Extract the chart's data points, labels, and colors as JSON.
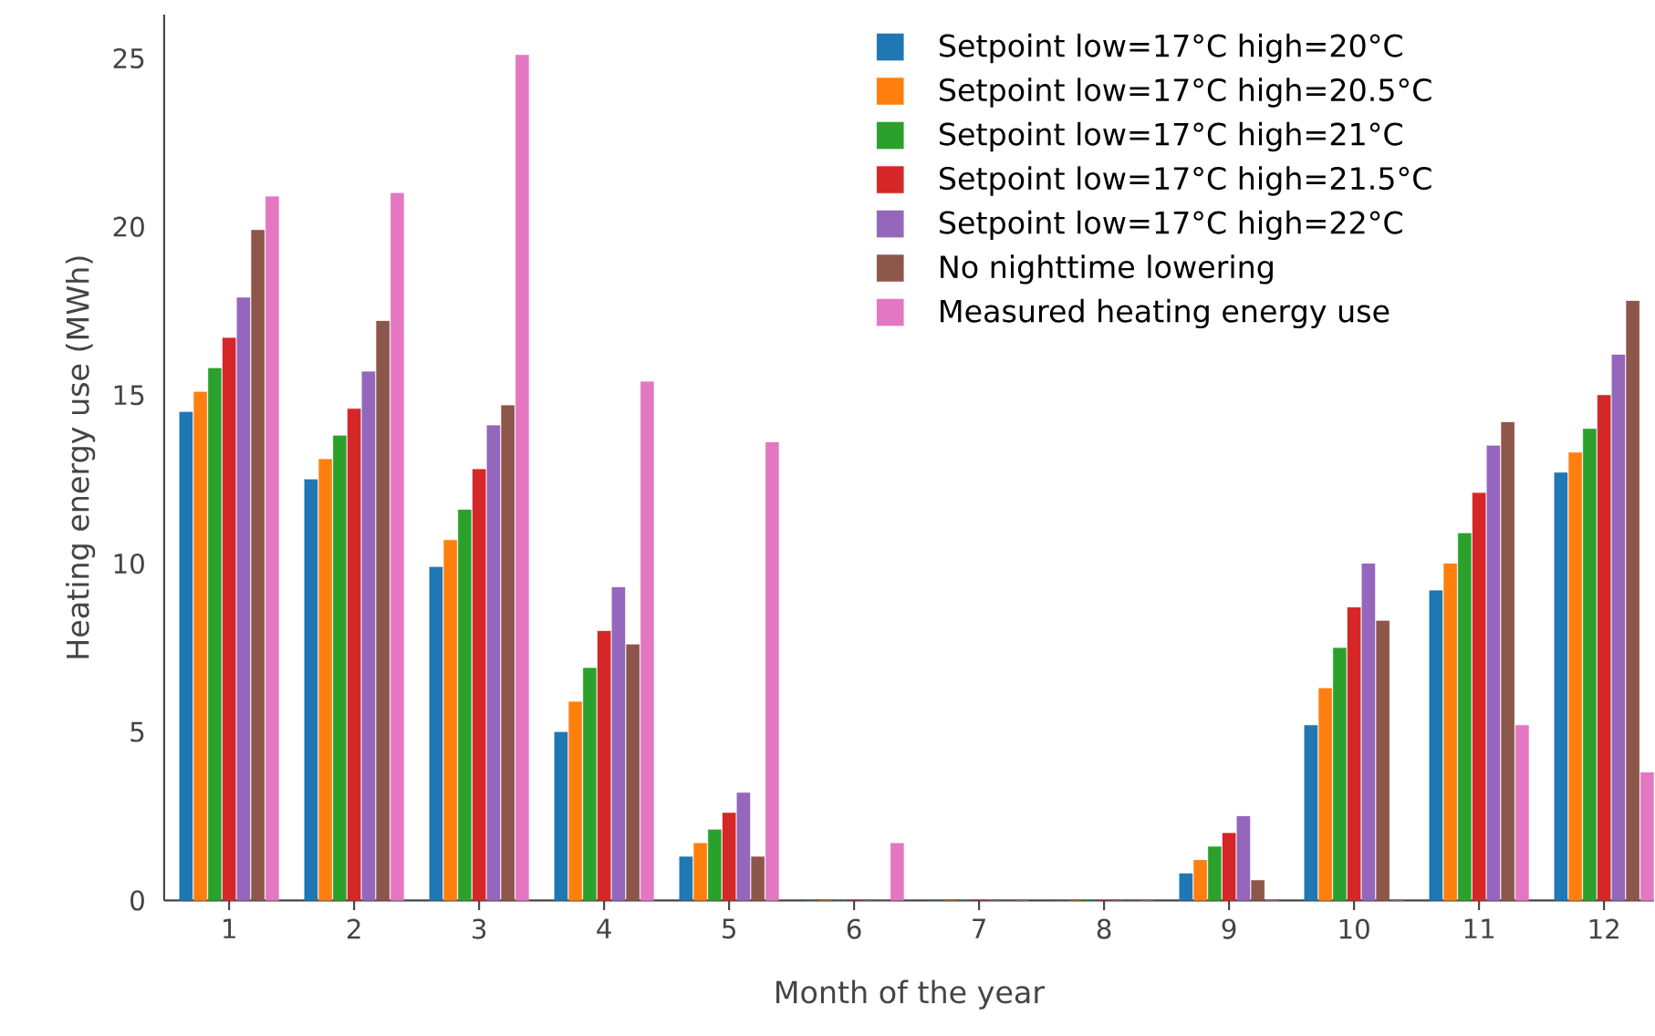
{
  "chart_data": {
    "type": "bar",
    "xlabel": "Month of the year",
    "ylabel": "Heating energy use (MWh)",
    "categories": [
      "1",
      "2",
      "3",
      "4",
      "5",
      "6",
      "7",
      "8",
      "9",
      "10",
      "11",
      "12"
    ],
    "series": [
      {
        "name": "Setpoint low=17°C high=20°C",
        "color": "#1f77b4",
        "values": [
          14.5,
          12.5,
          9.9,
          5.0,
          1.3,
          0,
          0,
          0,
          0.8,
          5.2,
          9.2,
          12.7
        ]
      },
      {
        "name": "Setpoint low=17°C high=20.5°C",
        "color": "#ff7f0e",
        "values": [
          15.1,
          13.1,
          10.7,
          5.9,
          1.7,
          0,
          0,
          0,
          1.2,
          6.3,
          10.0,
          13.3
        ]
      },
      {
        "name": "Setpoint low=17°C high=21°C",
        "color": "#2ca02c",
        "values": [
          15.8,
          13.8,
          11.6,
          6.9,
          2.1,
          0,
          0,
          0,
          1.6,
          7.5,
          10.9,
          14.0
        ]
      },
      {
        "name": "Setpoint low=17°C high=21.5°C",
        "color": "#d62728",
        "values": [
          16.7,
          14.6,
          12.8,
          8.0,
          2.6,
          0,
          0,
          0,
          2.0,
          8.7,
          12.1,
          15.0
        ]
      },
      {
        "name": "Setpoint low=17°C high=22°C",
        "color": "#9467bd",
        "values": [
          17.9,
          15.7,
          14.1,
          9.3,
          3.2,
          0,
          0,
          0,
          2.5,
          10.0,
          13.5,
          16.2
        ]
      },
      {
        "name": "No nighttime lowering",
        "color": "#8c564b",
        "values": [
          19.9,
          17.2,
          14.7,
          7.6,
          1.3,
          0,
          0,
          0,
          0.6,
          8.3,
          14.2,
          17.8
        ]
      },
      {
        "name": "Measured heating energy use",
        "color": "#e377c2",
        "values": [
          20.9,
          21.0,
          25.1,
          15.4,
          13.6,
          1.7,
          0,
          0,
          0,
          0,
          5.2,
          3.8
        ]
      }
    ],
    "ylim": [
      0,
      26.3
    ],
    "yticks": [
      0,
      5,
      10,
      15,
      20,
      25
    ],
    "grid": false,
    "legend": "top right"
  }
}
